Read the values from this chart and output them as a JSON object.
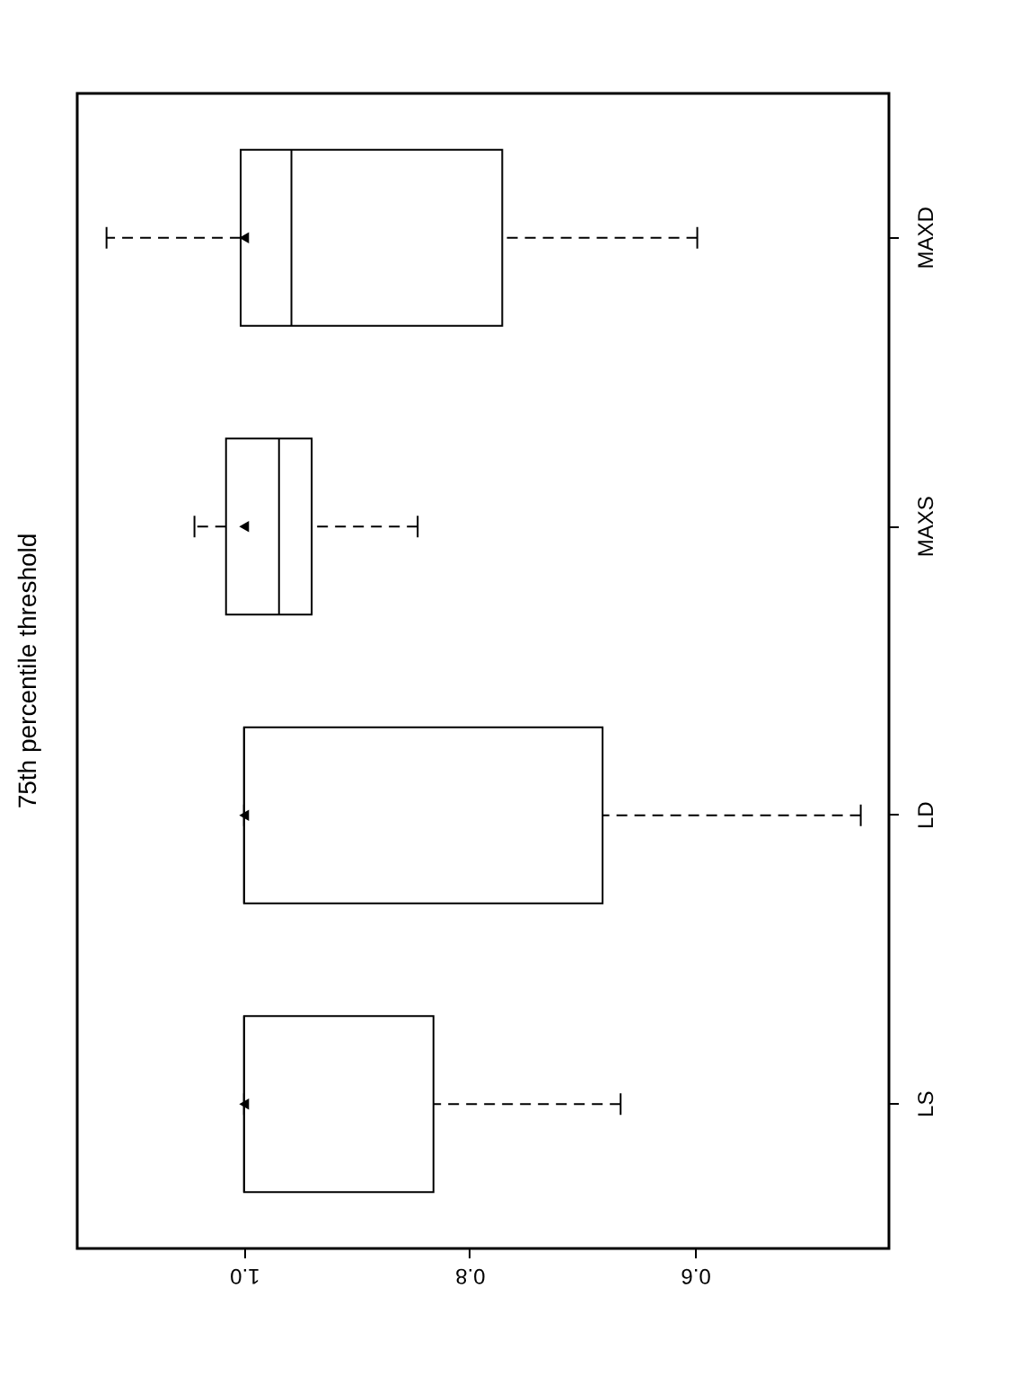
{
  "chart_data": {
    "type": "box",
    "orientation": "horizontal",
    "ylabel": "75th percentile threshold",
    "categories": [
      "MAXD",
      "MAXS",
      "LD",
      "LS"
    ],
    "boxes": [
      {
        "low": 0.598,
        "q1": 0.771,
        "median": 0.958,
        "q3": 1.003,
        "high": 1.122,
        "mean": 1.0
      },
      {
        "low": 0.846,
        "q1": 0.94,
        "median": 0.969,
        "q3": 1.016,
        "high": 1.044,
        "mean": 1.0
      },
      {
        "low": 0.453,
        "q1": 0.682,
        "median": 1.0,
        "q3": 1.0,
        "high": 1.0,
        "mean": 1.0
      },
      {
        "low": 0.666,
        "q1": 0.832,
        "median": 1.0,
        "q3": 1.0,
        "high": 1.0,
        "mean": 1.0
      }
    ],
    "color": "#000000",
    "xlim": [
      1.148,
      0.428
    ],
    "xticks": [
      {
        "value": 1.0,
        "label": "1.0"
      },
      {
        "value": 0.8,
        "label": "0.8"
      },
      {
        "value": 0.6,
        "label": "0.6"
      }
    ],
    "grid": false,
    "marker": "triangle",
    "line_style": "dashed"
  }
}
